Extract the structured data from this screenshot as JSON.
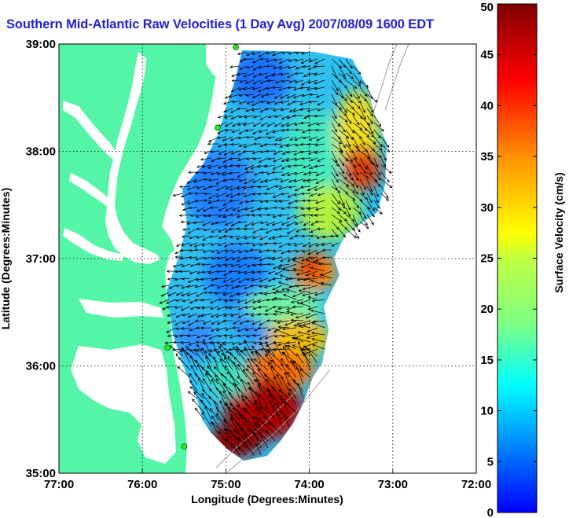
{
  "title": "Southern Mid-Atlantic Raw Velocities (1 Day Avg) 2007/08/09 1600 EDT",
  "x_axis": {
    "label": "Longitude (Degrees:Minutes)",
    "ticks": [
      "77:00",
      "76:00",
      "75:00",
      "74:00",
      "73:00",
      "72:00"
    ]
  },
  "y_axis": {
    "label": "Latitude (Degrees:Minutes)",
    "ticks": [
      "39:00",
      "38:00",
      "37:00",
      "36:00",
      "35:00"
    ]
  },
  "colorbar": {
    "label": "Surface Velocity (cm/s)",
    "ticks": [
      "50",
      "45",
      "40",
      "35",
      "30",
      "25",
      "20",
      "15",
      "10",
      "5",
      "0"
    ],
    "min": 0,
    "max": 50,
    "colormap": "jet"
  },
  "map": {
    "lon_range": [
      -77,
      -72
    ],
    "lat_range": [
      35,
      39
    ],
    "land_color": "#55f5a7",
    "ocean_color": "#ffffff",
    "grid": "dotted",
    "stations": [
      {
        "lon": -74.88,
        "lat": 38.97
      },
      {
        "lon": -75.1,
        "lat": 38.22
      },
      {
        "lon": -75.7,
        "lat": 36.17
      },
      {
        "lon": -75.5,
        "lat": 35.25
      }
    ]
  }
}
